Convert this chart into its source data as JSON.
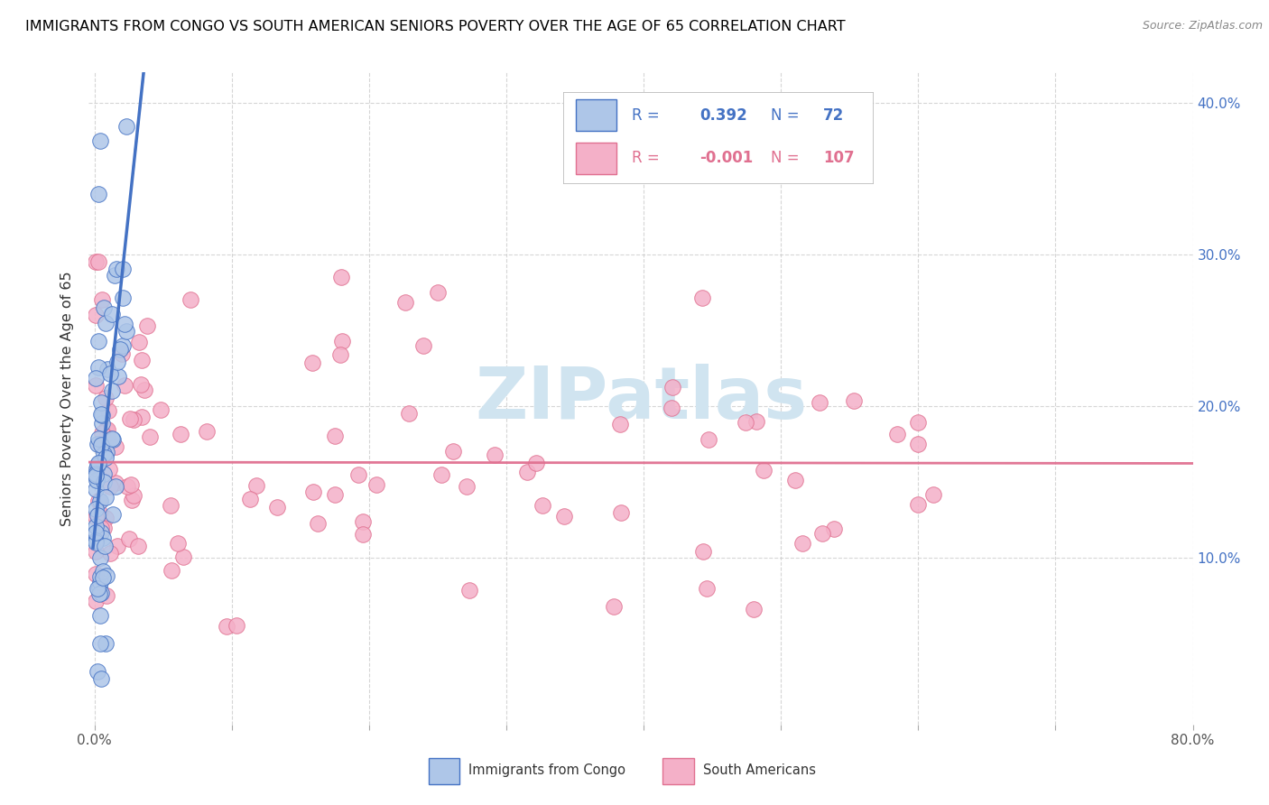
{
  "title": "IMMIGRANTS FROM CONGO VS SOUTH AMERICAN SENIORS POVERTY OVER THE AGE OF 65 CORRELATION CHART",
  "source": "Source: ZipAtlas.com",
  "ylabel": "Seniors Poverty Over the Age of 65",
  "xlim": [
    0,
    0.8
  ],
  "ylim": [
    0,
    0.42
  ],
  "r_congo": 0.392,
  "n_congo": 72,
  "r_southam": -0.001,
  "n_southam": 107,
  "color_congo_fill": "#aec6e8",
  "color_congo_edge": "#4472c4",
  "color_southam_fill": "#f4b0c8",
  "color_southam_edge": "#e07090",
  "color_congo_line": "#4472c4",
  "color_southam_line": "#e07090",
  "grid_color": "#cccccc",
  "watermark_color": "#d0e4f0",
  "right_tick_color": "#4472c4"
}
